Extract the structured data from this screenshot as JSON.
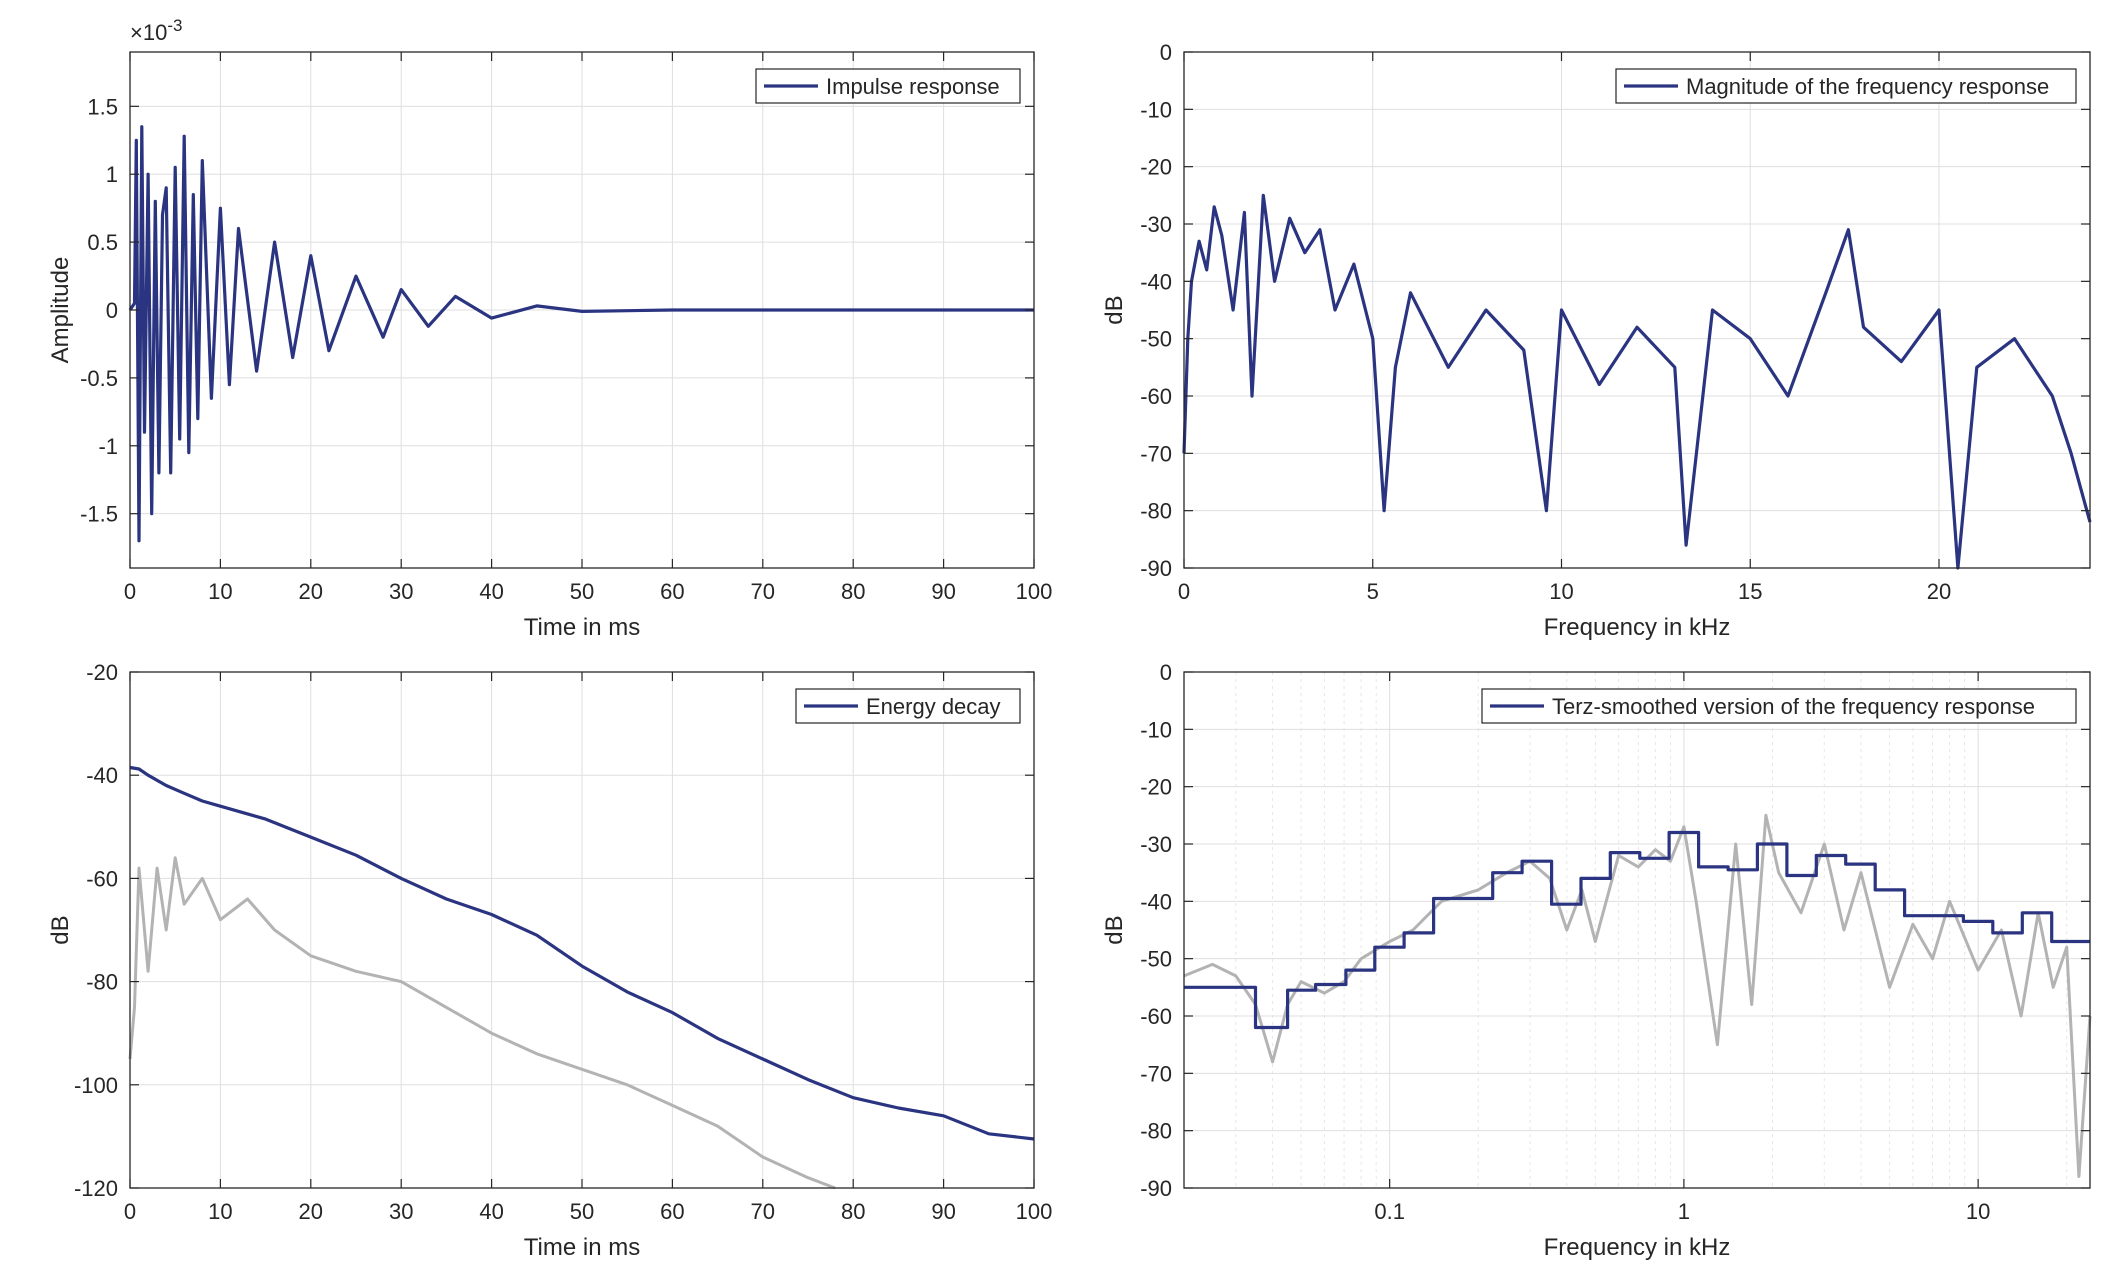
{
  "colors": {
    "primary_series": "#2a3480",
    "secondary_series": "#b3b3b3",
    "axis": "#262626",
    "grid": "#dfdfdf"
  },
  "chart_data": [
    {
      "id": "impulse",
      "type": "line",
      "xlabel": "Time in ms",
      "ylabel": "Amplitude",
      "exponent_label": "×10",
      "exponent_power": "-3",
      "xlim": [
        0,
        100
      ],
      "ylim": [
        -1.9,
        1.9
      ],
      "xticks": [
        0,
        10,
        20,
        30,
        40,
        50,
        60,
        70,
        80,
        90,
        100
      ],
      "xtick_labels": [
        "0",
        "10",
        "20",
        "30",
        "40",
        "50",
        "60",
        "70",
        "80",
        "90",
        "100"
      ],
      "yticks": [
        -1.5,
        -1,
        -0.5,
        0,
        0.5,
        1,
        1.5
      ],
      "ytick_labels": [
        "-1.5",
        "-1",
        "-0.5",
        "0",
        "0.5",
        "1",
        "1.5"
      ],
      "grid": true,
      "legend_position": "top-right",
      "series": [
        {
          "name": "Impulse response",
          "color": "#2a3480",
          "x": [
            0,
            0.5,
            0.7,
            1.0,
            1.3,
            1.6,
            2.0,
            2.4,
            2.8,
            3.2,
            3.6,
            4.0,
            4.5,
            5.0,
            5.5,
            6.0,
            6.5,
            7.0,
            7.5,
            8.0,
            9.0,
            10.0,
            11.0,
            12.0,
            14.0,
            16.0,
            18.0,
            20.0,
            22.0,
            25.0,
            28.0,
            30.0,
            33.0,
            36.0,
            40.0,
            45.0,
            50.0,
            60.0,
            100.0
          ],
          "y": [
            0,
            0.05,
            1.25,
            -1.7,
            1.35,
            -0.9,
            1.0,
            -1.5,
            0.8,
            -1.2,
            0.7,
            0.9,
            -1.2,
            1.05,
            -0.95,
            1.28,
            -1.05,
            0.85,
            -0.8,
            1.1,
            -0.65,
            0.75,
            -0.55,
            0.6,
            -0.45,
            0.5,
            -0.35,
            0.4,
            -0.3,
            0.25,
            -0.2,
            0.15,
            -0.12,
            0.1,
            -0.06,
            0.03,
            -0.01,
            0.0,
            0.0
          ]
        }
      ]
    },
    {
      "id": "magnitude",
      "type": "line",
      "xlabel": "Frequency in kHz",
      "ylabel": "dB",
      "xlim": [
        0,
        24
      ],
      "ylim": [
        -90,
        0
      ],
      "xticks": [
        0,
        5,
        10,
        15,
        20
      ],
      "xtick_labels": [
        "0",
        "5",
        "10",
        "15",
        "20"
      ],
      "yticks": [
        -90,
        -80,
        -70,
        -60,
        -50,
        -40,
        -30,
        -20,
        -10,
        0
      ],
      "ytick_labels": [
        "-90",
        "-80",
        "-70",
        "-60",
        "-50",
        "-40",
        "-30",
        "-20",
        "-10",
        "0"
      ],
      "grid": true,
      "legend_position": "top-right",
      "series": [
        {
          "name": "Magnitude of the frequency response",
          "color": "#2a3480",
          "x": [
            0,
            0.1,
            0.2,
            0.4,
            0.6,
            0.8,
            1.0,
            1.3,
            1.6,
            1.8,
            2.1,
            2.4,
            2.8,
            3.2,
            3.6,
            4.0,
            4.5,
            5.0,
            5.3,
            5.6,
            6.0,
            7.0,
            8.0,
            9.0,
            9.6,
            10.0,
            11.0,
            12.0,
            13.0,
            13.3,
            14.0,
            15.0,
            16.0,
            17.0,
            17.6,
            18.0,
            19.0,
            20.0,
            20.5,
            21.0,
            22.0,
            23.0,
            23.5,
            24.0
          ],
          "y": [
            -70,
            -50,
            -40,
            -33,
            -38,
            -27,
            -32,
            -45,
            -28,
            -60,
            -25,
            -40,
            -29,
            -35,
            -31,
            -45,
            -37,
            -50,
            -80,
            -55,
            -42,
            -55,
            -45,
            -52,
            -80,
            -45,
            -58,
            -48,
            -55,
            -86,
            -45,
            -50,
            -60,
            -42,
            -31,
            -48,
            -54,
            -45,
            -90,
            -55,
            -50,
            -60,
            -70,
            -82
          ]
        }
      ]
    },
    {
      "id": "energy",
      "type": "line",
      "xlabel": "Time in ms",
      "ylabel": "dB",
      "xlim": [
        0,
        100
      ],
      "ylim": [
        -120,
        -20
      ],
      "xticks": [
        0,
        10,
        20,
        30,
        40,
        50,
        60,
        70,
        80,
        90,
        100
      ],
      "xtick_labels": [
        "0",
        "10",
        "20",
        "30",
        "40",
        "50",
        "60",
        "70",
        "80",
        "90",
        "100"
      ],
      "yticks": [
        -120,
        -100,
        -80,
        -60,
        -40,
        -20
      ],
      "ytick_labels": [
        "-120",
        "-100",
        "-80",
        "-60",
        "-40",
        "-20"
      ],
      "grid": true,
      "legend_position": "top-right",
      "series": [
        {
          "name": "Energy decay",
          "color": "#2a3480",
          "x": [
            0,
            1,
            2,
            4,
            6,
            8,
            10,
            15,
            20,
            25,
            30,
            35,
            40,
            45,
            50,
            55,
            60,
            65,
            70,
            75,
            80,
            85,
            90,
            95,
            100
          ],
          "y": [
            -38.5,
            -38.8,
            -40,
            -42,
            -43.5,
            -45,
            -46,
            -48.5,
            -52,
            -55.5,
            -60,
            -64,
            -67,
            -71,
            -77,
            -82,
            -86,
            -91,
            -95,
            -99,
            -102.5,
            -104.5,
            -106,
            -109.5,
            -110.5
          ]
        },
        {
          "color": "#b3b3b3",
          "x": [
            0,
            0.5,
            1.0,
            2.0,
            3.0,
            4.0,
            5.0,
            6.0,
            8.0,
            10.0,
            13.0,
            16.0,
            20.0,
            25.0,
            30.0,
            35.0,
            40.0,
            45.0,
            50.0,
            55.0,
            60.0,
            65.0,
            70.0,
            75.0,
            78.0
          ],
          "y": [
            -95,
            -85,
            -58,
            -78,
            -58,
            -70,
            -56,
            -65,
            -60,
            -68,
            -64,
            -70,
            -75,
            -78,
            -80,
            -85,
            -90,
            -94,
            -97,
            -100,
            -104,
            -108,
            -114,
            -118,
            -120
          ]
        }
      ]
    },
    {
      "id": "terz",
      "type": "line",
      "xlabel": "Frequency in kHz",
      "ylabel": "dB",
      "xscale": "log",
      "xlim": [
        0.02,
        24
      ],
      "ylim": [
        -90,
        0
      ],
      "xticks": [
        0.1,
        1,
        10
      ],
      "xtick_labels": [
        "0.1",
        "1",
        "10"
      ],
      "yticks": [
        -90,
        -80,
        -70,
        -60,
        -50,
        -40,
        -30,
        -20,
        -10,
        0
      ],
      "ytick_labels": [
        "-90",
        "-80",
        "-70",
        "-60",
        "-50",
        "-40",
        "-30",
        "-20",
        "-10",
        "0"
      ],
      "grid": true,
      "legend_position": "top-right",
      "series": [
        {
          "name": "Terz-smoothed version of the frequency response",
          "color": "#2a3480",
          "x": [
            0.02,
            0.035,
            0.035,
            0.045,
            0.045,
            0.056,
            0.056,
            0.071,
            0.071,
            0.089,
            0.089,
            0.112,
            0.112,
            0.141,
            0.141,
            0.224,
            0.224,
            0.282,
            0.282,
            0.355,
            0.355,
            0.447,
            0.447,
            0.562,
            0.562,
            0.708,
            0.708,
            0.891,
            0.891,
            1.122,
            1.122,
            1.413,
            1.413,
            1.778,
            1.778,
            2.239,
            2.239,
            2.818,
            2.818,
            3.548,
            3.548,
            4.467,
            4.467,
            5.623,
            5.623,
            8.913,
            8.913,
            11.22,
            11.22,
            14.13,
            14.13,
            17.78,
            17.78,
            24.0
          ],
          "y": [
            -55,
            -55,
            -62,
            -62,
            -55.5,
            -55.5,
            -54.5,
            -54.5,
            -52,
            -52,
            -48,
            -48,
            -45.5,
            -45.5,
            -39.5,
            -39.5,
            -35,
            -35,
            -33,
            -33,
            -40.5,
            -40.5,
            -36,
            -36,
            -31.5,
            -31.5,
            -32.5,
            -32.5,
            -28,
            -28,
            -34,
            -34,
            -34.5,
            -34.5,
            -30,
            -30,
            -35.5,
            -35.5,
            -32,
            -32,
            -33.5,
            -33.5,
            -38,
            -38,
            -42.5,
            -42.5,
            -43.5,
            -43.5,
            -45.5,
            -45.5,
            -42,
            -42,
            -47,
            -47
          ]
        },
        {
          "color": "#b3b3b3",
          "x": [
            0.02,
            0.025,
            0.03,
            0.035,
            0.04,
            0.045,
            0.05,
            0.06,
            0.07,
            0.08,
            0.1,
            0.12,
            0.15,
            0.2,
            0.25,
            0.3,
            0.35,
            0.4,
            0.45,
            0.5,
            0.6,
            0.7,
            0.8,
            0.9,
            1.0,
            1.1,
            1.3,
            1.5,
            1.7,
            1.9,
            2.1,
            2.5,
            3.0,
            3.5,
            4.0,
            5.0,
            6.0,
            7.0,
            8.0,
            10.0,
            12.0,
            14.0,
            16.0,
            18.0,
            20.0,
            22.0,
            24.0
          ],
          "y": [
            -53,
            -51,
            -53,
            -58,
            -68,
            -58,
            -54,
            -56,
            -54,
            -50,
            -47,
            -45,
            -40,
            -38,
            -35,
            -33,
            -36,
            -45,
            -38,
            -47,
            -32,
            -34,
            -31,
            -33,
            -27,
            -40,
            -65,
            -30,
            -58,
            -25,
            -35,
            -42,
            -30,
            -45,
            -35,
            -55,
            -44,
            -50,
            -40,
            -52,
            -45,
            -60,
            -42,
            -55,
            -48,
            -88,
            -60
          ]
        }
      ]
    }
  ]
}
